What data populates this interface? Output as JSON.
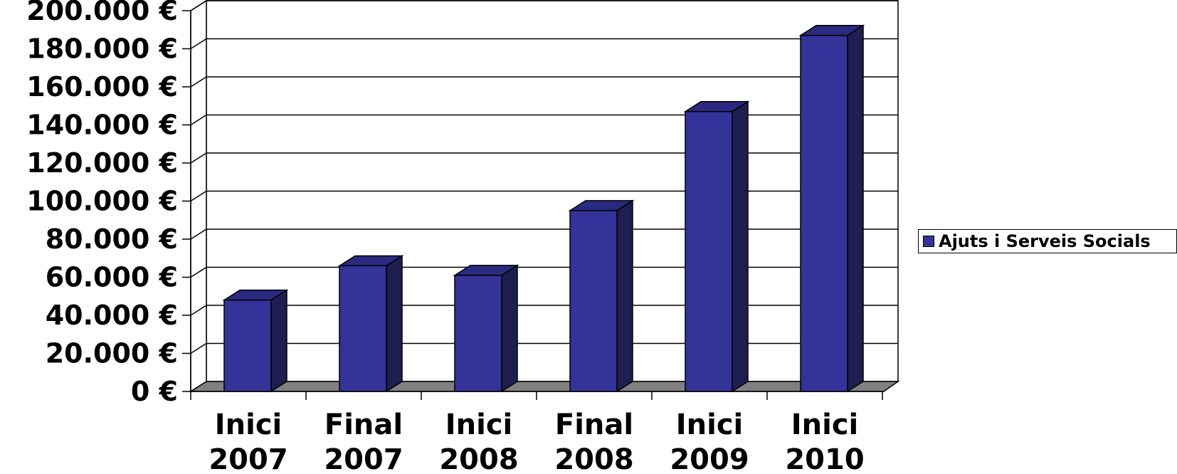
{
  "chart_data": {
    "type": "bar",
    "categories": [
      [
        "Inici",
        "2007"
      ],
      [
        "Final",
        "2007"
      ],
      [
        "Inici",
        "2008"
      ],
      [
        "Final",
        "2008"
      ],
      [
        "Inici",
        "2009"
      ],
      [
        "Inici",
        "2010"
      ]
    ],
    "series": [
      {
        "name": "Ajuts i Serveis Socials",
        "values": [
          48000,
          66000,
          61000,
          95000,
          147000,
          187000
        ]
      }
    ],
    "ylim": [
      0,
      200000
    ],
    "y_ticks": [
      "0 €",
      "20.000 €",
      "40.000 €",
      "60.000 €",
      "80.000 €",
      "100.000 €",
      "120.000 €",
      "140.000 €",
      "160.000 €",
      "180.000 €",
      "200.000 €"
    ],
    "grid": true,
    "legend_position": "right",
    "colors": {
      "bar_front": "#333399",
      "bar_top": "#2a2a80",
      "bar_side": "#1e1e50",
      "floor": "#808080",
      "outline": "#000000"
    }
  }
}
